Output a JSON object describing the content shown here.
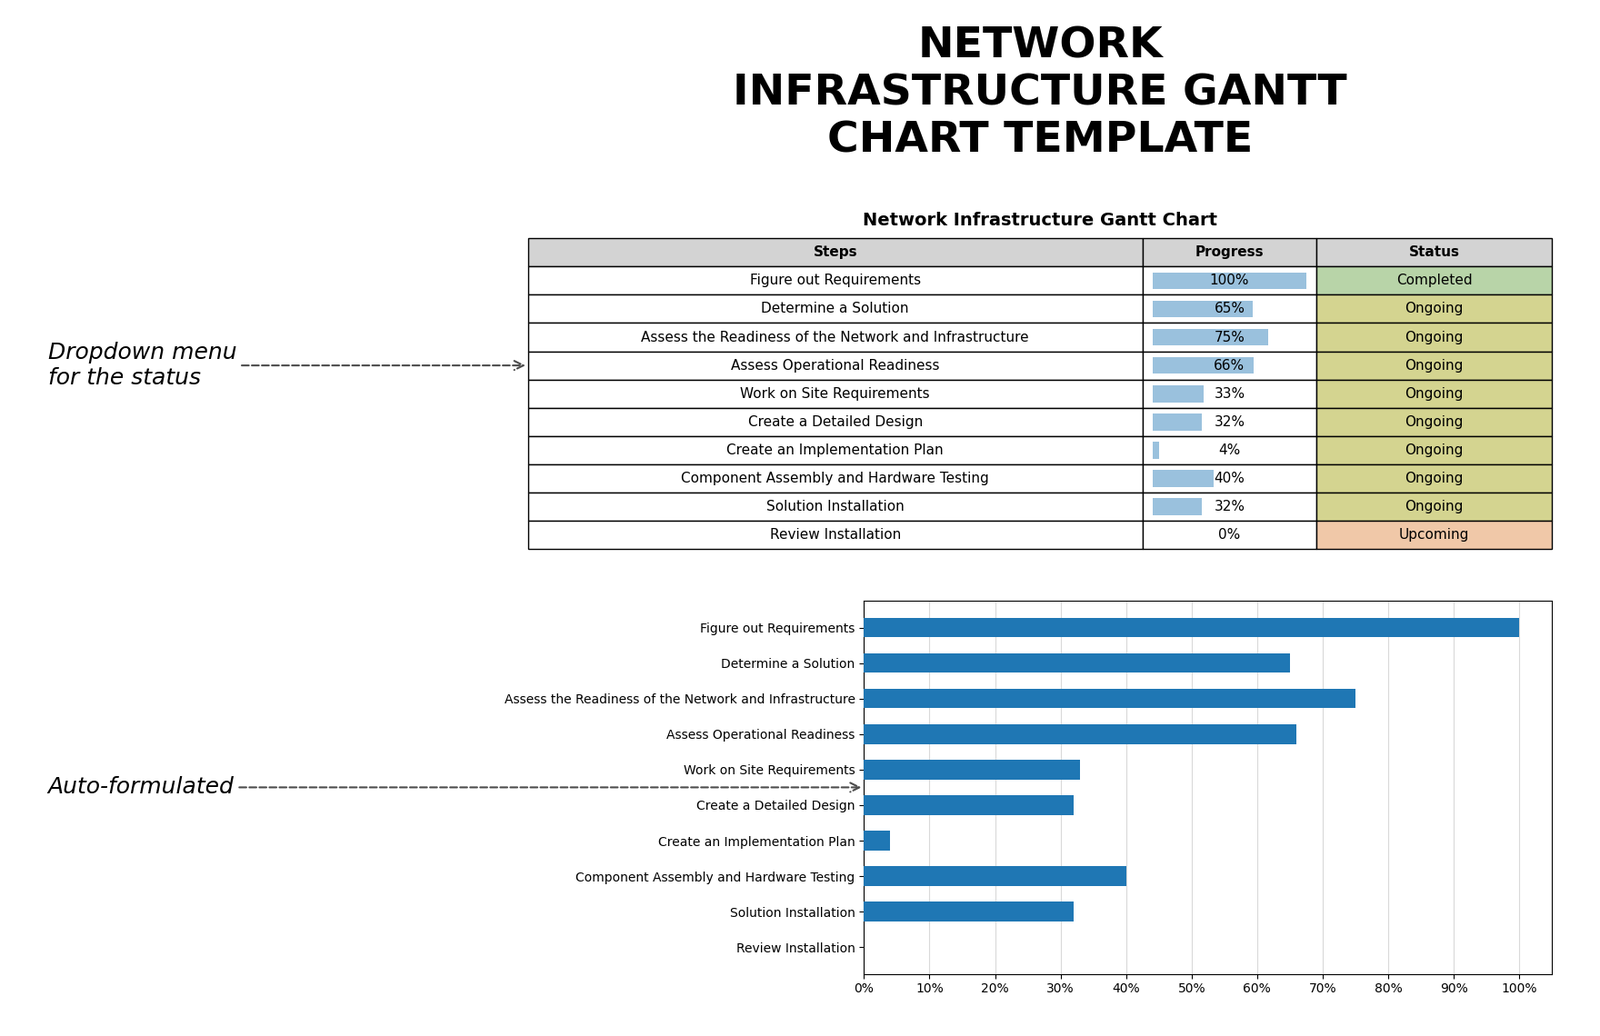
{
  "chart_data": [
    {
      "type": "table",
      "title": "NETWORK\nINFRASTRUCTURE GANTT\nCHART TEMPLATE",
      "subtitle": "Network Infrastructure Gantt Chart",
      "columns": [
        "Steps",
        "Progress",
        "Status"
      ],
      "categories": [
        "Figure out Requirements",
        "Determine a Solution",
        "Assess the Readiness of the Network and Infrastructure",
        "Assess Operational Readiness",
        "Work on Site Requirements",
        "Create a Detailed Design",
        "Create an Implementation Plan",
        "Component Assembly and Hardware Testing",
        "Solution Installation",
        "Review Installation"
      ],
      "values": [
        100,
        65,
        75,
        66,
        33,
        32,
        4,
        40,
        32,
        0
      ],
      "value_labels": [
        "100%",
        "65%",
        "75%",
        "66%",
        "33%",
        "32%",
        "4%",
        "40%",
        "32%",
        "0%"
      ],
      "status": [
        "Completed",
        "Ongoing",
        "Ongoing",
        "Ongoing",
        "Ongoing",
        "Ongoing",
        "Ongoing",
        "Ongoing",
        "Ongoing",
        "Upcoming"
      ],
      "colors": [
        "#b8d4a8",
        "#d4d490",
        "#d4d490",
        "#d4d490",
        "#d4d490",
        "#d4d490",
        "#d4d490",
        "#d4d490",
        "#d4d490",
        "#f0c8a8"
      ],
      "xlim": [
        0,
        100
      ],
      "tick_labels": false,
      "annotations": [
        "Dropdown menu\nfor the status"
      ]
    },
    {
      "type": "bar",
      "orientation": "horizontal",
      "categories": [
        "Figure out Requirements",
        "Determine a Solution",
        "Assess the Readiness of the Network and Infrastructure",
        "Assess Operational Readiness",
        "Work on Site Requirements",
        "Create a Detailed Design",
        "Create an Implementation Plan",
        "Component Assembly and Hardware Testing",
        "Solution Installation",
        "Review Installation"
      ],
      "values": [
        100,
        65,
        75,
        66,
        33,
        32,
        4,
        40,
        32,
        0
      ],
      "xlim": [
        0,
        105
      ],
      "xticks": [
        {
          "value": 0,
          "label": "0%"
        },
        {
          "value": 10,
          "label": "10%"
        },
        {
          "value": 20,
          "label": "20%"
        },
        {
          "value": 30,
          "label": "30%"
        },
        {
          "value": 40,
          "label": "40%"
        },
        {
          "value": 50,
          "label": "50%"
        },
        {
          "value": 60,
          "label": "60%"
        },
        {
          "value": 70,
          "label": "70%"
        },
        {
          "value": 80,
          "label": "80%"
        },
        {
          "value": 90,
          "label": "90%"
        },
        {
          "value": 100,
          "label": "100%"
        }
      ],
      "grid": true,
      "annotations": [
        "Auto-formulated"
      ]
    }
  ]
}
